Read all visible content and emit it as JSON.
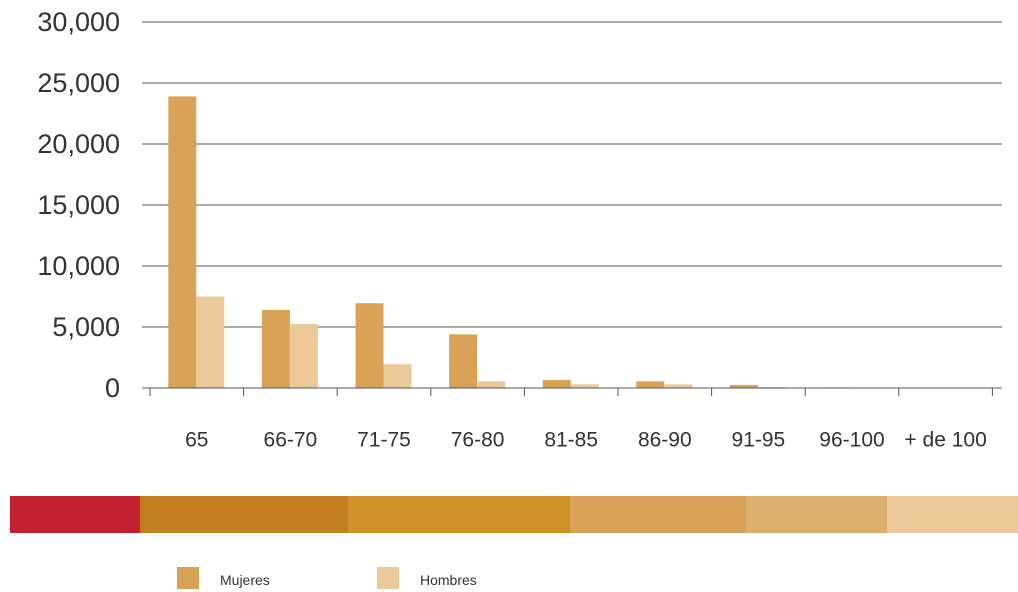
{
  "chart_data": {
    "type": "bar",
    "categories": [
      "65",
      "66-70",
      "71-75",
      "76-80",
      "81-85",
      "86-90",
      "91-95",
      "96-100",
      "+ de 100"
    ],
    "series": [
      {
        "name": "Mujeres",
        "color": "#d8a356",
        "values": [
          23900,
          6400,
          6950,
          4400,
          650,
          550,
          250,
          50,
          20
        ]
      },
      {
        "name": "Hombres",
        "color": "#ebc99b",
        "values": [
          7500,
          5250,
          1950,
          550,
          300,
          300,
          80,
          20,
          10
        ]
      }
    ],
    "yticks": [
      {
        "value": 0,
        "label": "0"
      },
      {
        "value": 5000,
        "label": "5,000"
      },
      {
        "value": 10000,
        "label": "10,000"
      },
      {
        "value": 15000,
        "label": "15,000"
      },
      {
        "value": 20000,
        "label": "20,000"
      },
      {
        "value": 25000,
        "label": "25,000"
      },
      {
        "value": 30000,
        "label": "30,000"
      }
    ],
    "ylim": [
      0,
      30000
    ],
    "grid": true,
    "legend_position": "bottom",
    "color_strip": [
      "#c0202f",
      "#c27e1e",
      "#d08f28",
      "#d8a356",
      "#dcaf6c",
      "#ebc99b"
    ]
  }
}
